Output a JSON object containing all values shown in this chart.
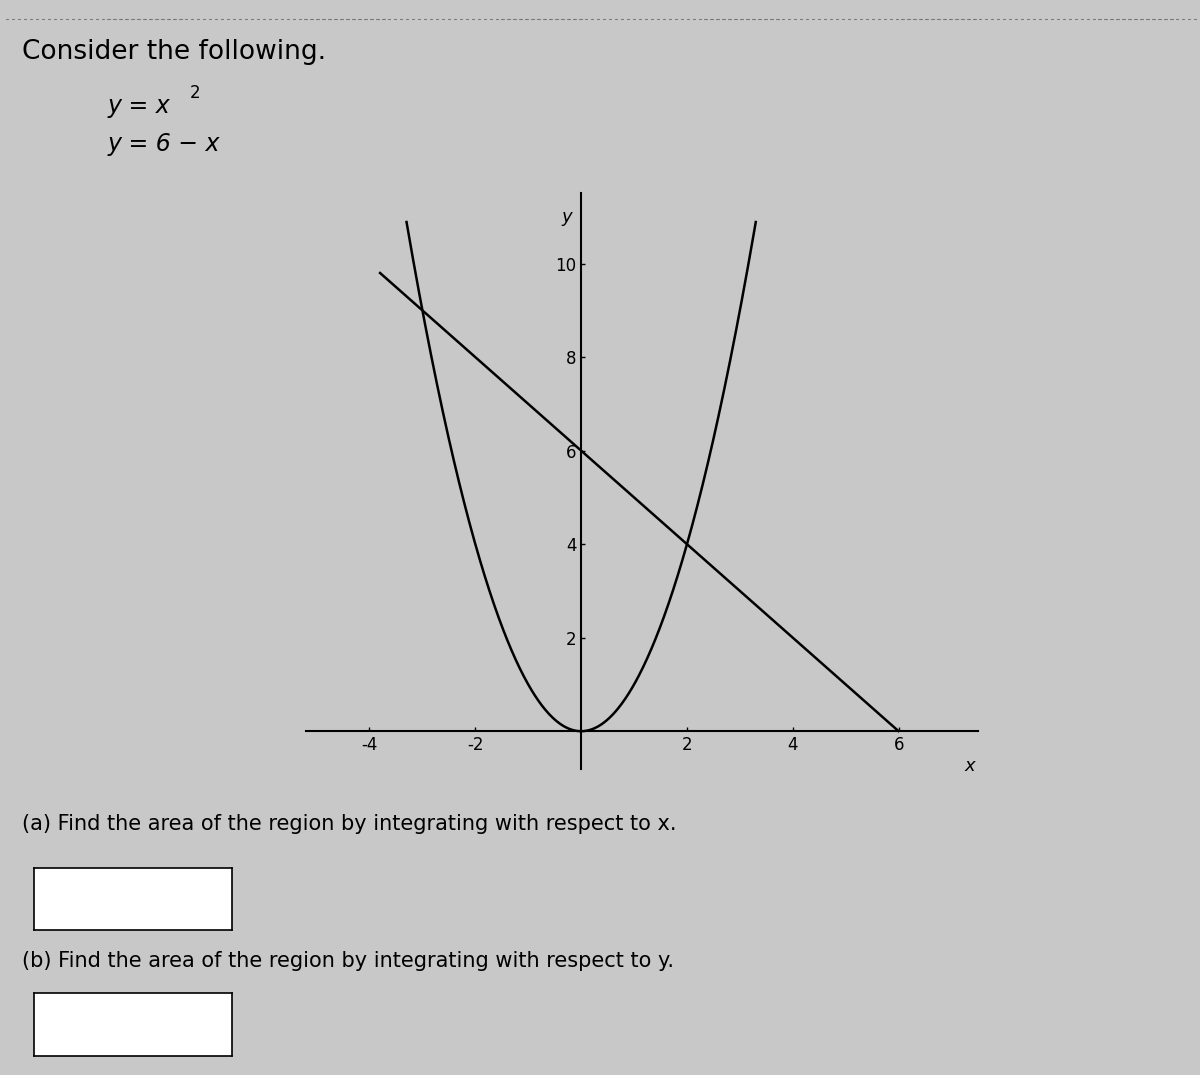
{
  "title": "Consider the following.",
  "eq1_part1": "y = x",
  "eq1_sup": "2",
  "eq2": "y = 6 − x",
  "part_a": "(a) Find the area of the region by integrating with respect to x.",
  "part_b": "(b) Find the area of the region by integrating with respect to y.",
  "xlabel": "x",
  "ylabel": "y",
  "x_ticks": [
    -4,
    -2,
    2,
    4,
    6
  ],
  "y_ticks": [
    2,
    4,
    6,
    8,
    10
  ],
  "xlim": [
    -5.2,
    7.5
  ],
  "ylim": [
    -0.8,
    11.5
  ],
  "bg_color": "#c8c8c8",
  "line_color": "#000000",
  "text_color": "#000000",
  "font_size_title": 19,
  "font_size_eq": 17,
  "font_size_part": 15,
  "font_size_tick": 12,
  "font_size_axlabel": 13
}
